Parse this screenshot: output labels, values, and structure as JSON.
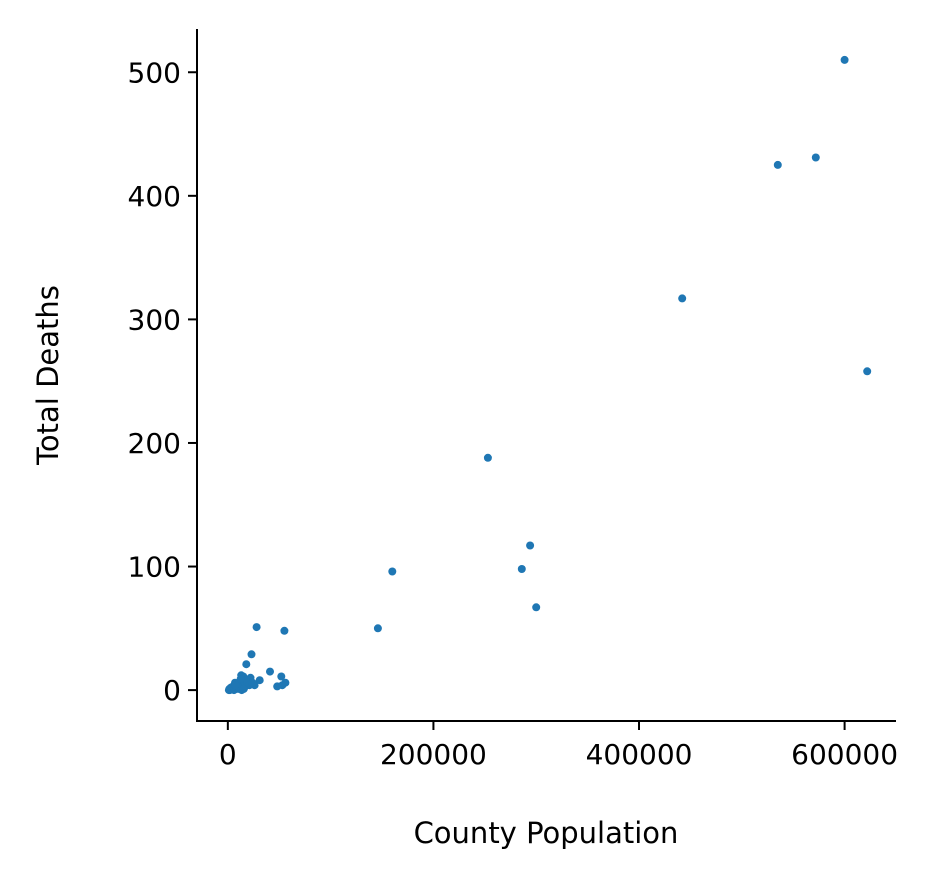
{
  "chart_data": {
    "type": "scatter",
    "title": "",
    "xlabel": "County Population",
    "ylabel": "Total Deaths",
    "xlim": [
      -30000,
      650000
    ],
    "ylim": [
      -25,
      535
    ],
    "x_ticks": [
      {
        "value": 0,
        "label": "0"
      },
      {
        "value": 200000,
        "label": "200000"
      },
      {
        "value": 400000,
        "label": "400000"
      },
      {
        "value": 600000,
        "label": "600000"
      }
    ],
    "y_ticks": [
      {
        "value": 0,
        "label": "0"
      },
      {
        "value": 100,
        "label": "100"
      },
      {
        "value": 200,
        "label": "200"
      },
      {
        "value": 300,
        "label": "300"
      },
      {
        "value": 400,
        "label": "400"
      },
      {
        "value": 500,
        "label": "500"
      }
    ],
    "grid": false,
    "legend": "none",
    "color": "#1f77b4",
    "spines": "left-bottom",
    "series": [
      {
        "points": [
          [
            600000,
            510
          ],
          [
            572000,
            431
          ],
          [
            535000,
            425
          ],
          [
            442000,
            317
          ],
          [
            622000,
            258
          ],
          [
            253000,
            188
          ],
          [
            294000,
            117
          ],
          [
            286000,
            98
          ],
          [
            160000,
            96
          ],
          [
            300000,
            67
          ],
          [
            146000,
            50
          ],
          [
            28000,
            51
          ],
          [
            55000,
            48
          ],
          [
            23000,
            29
          ],
          [
            18000,
            21
          ],
          [
            41000,
            15
          ],
          [
            52000,
            11
          ],
          [
            56000,
            6
          ],
          [
            31000,
            8
          ],
          [
            48000,
            3
          ],
          [
            53000,
            4
          ],
          [
            26000,
            4
          ],
          [
            20000,
            8
          ],
          [
            22000,
            10
          ],
          [
            15000,
            11
          ],
          [
            13000,
            12
          ],
          [
            12000,
            7
          ],
          [
            9000,
            5
          ],
          [
            7000,
            6
          ],
          [
            5000,
            3
          ],
          [
            4000,
            1
          ],
          [
            3000,
            2
          ],
          [
            2000,
            0
          ],
          [
            1000,
            0
          ],
          [
            1500,
            1
          ],
          [
            6000,
            0
          ],
          [
            8000,
            2
          ],
          [
            10000,
            1
          ],
          [
            11000,
            4
          ],
          [
            14000,
            3
          ],
          [
            16000,
            2
          ],
          [
            17000,
            5
          ],
          [
            19000,
            6
          ],
          [
            21000,
            4
          ],
          [
            24000,
            6
          ],
          [
            13500,
            0
          ],
          [
            9500,
            3
          ],
          [
            12500,
            9
          ],
          [
            15500,
            1
          ],
          [
            7500,
            4
          ]
        ]
      }
    ]
  }
}
